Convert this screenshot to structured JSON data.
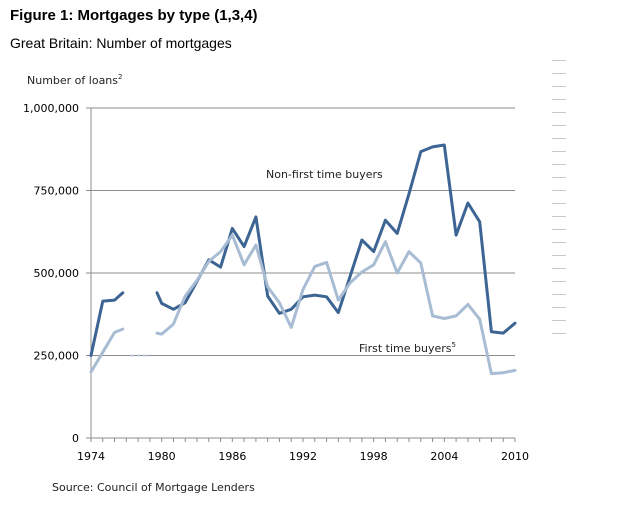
{
  "figure": {
    "title": "Figure 1: Mortgages by type (1,3,4)",
    "subtitle": "Great Britain: Number of mortgages",
    "source": "Source: Council of Mortgage Lenders"
  },
  "chart_data": {
    "type": "line",
    "ylabel": "Number of loans",
    "ylabel_sup": "2",
    "ylim": [
      0,
      1000000
    ],
    "xlim": [
      1974,
      2010
    ],
    "yticks": [
      0,
      250000,
      500000,
      750000,
      1000000
    ],
    "ytick_labels": [
      "0",
      "250,000",
      "500,000",
      "750,000",
      "1,000,000"
    ],
    "xtick_labels": [
      "1974",
      "1980",
      "1986",
      "1992",
      "1998",
      "2004",
      "2010"
    ],
    "xticks": [
      1974,
      1980,
      1986,
      1992,
      1998,
      2004,
      2010
    ],
    "grid": true,
    "series": [
      {
        "name": "Non-first time buyers",
        "color": "#3d6593",
        "segments": [
          [
            [
              1974,
              250000
            ],
            [
              1975,
              415000
            ],
            [
              1976,
              418000
            ],
            [
              1976.7,
              440000
            ]
          ],
          [
            [
              1979.6,
              440000
            ],
            [
              1980,
              408000
            ],
            [
              1981,
              390000
            ],
            [
              1982,
              410000
            ],
            [
              1983,
              475000
            ],
            [
              1984,
              540000
            ],
            [
              1985,
              518000
            ],
            [
              1986,
              635000
            ],
            [
              1987,
              580000
            ],
            [
              1988,
              670000
            ],
            [
              1989,
              430000
            ],
            [
              1990,
              378000
            ],
            [
              1991,
              390000
            ],
            [
              1992,
              428000
            ],
            [
              1993,
              433000
            ],
            [
              1994,
              428000
            ],
            [
              1995,
              380000
            ],
            [
              1996,
              490000
            ],
            [
              1997,
              600000
            ],
            [
              1998,
              565000
            ],
            [
              1999,
              660000
            ],
            [
              2000,
              620000
            ],
            [
              2001,
              740000
            ],
            [
              2002,
              868000
            ],
            [
              2003,
              882000
            ],
            [
              2004,
              888000
            ],
            [
              2005,
              615000
            ],
            [
              2006,
              712000
            ],
            [
              2007,
              655000
            ],
            [
              2008,
              322000
            ],
            [
              2009,
              318000
            ],
            [
              2010,
              348000
            ]
          ]
        ]
      },
      {
        "name": "First time buyers",
        "name_sup": "5",
        "color": "#a8bcd3",
        "segments": [
          [
            [
              1974,
              200000
            ],
            [
              1975,
              260000
            ],
            [
              1976,
              320000
            ],
            [
              1976.7,
              330000
            ]
          ],
          [
            [
              1979.6,
              318000
            ],
            [
              1980,
              315000
            ],
            [
              1981,
              345000
            ],
            [
              1982,
              430000
            ],
            [
              1983,
              478000
            ],
            [
              1984,
              535000
            ],
            [
              1985,
              565000
            ],
            [
              1986,
              615000
            ],
            [
              1987,
              525000
            ],
            [
              1988,
              585000
            ],
            [
              1989,
              458000
            ],
            [
              1990,
              410000
            ],
            [
              1991,
              335000
            ],
            [
              1992,
              450000
            ],
            [
              1993,
              520000
            ],
            [
              1994,
              532000
            ],
            [
              1995,
              418000
            ],
            [
              1996,
              470000
            ],
            [
              1997,
              503000
            ],
            [
              1998,
              525000
            ],
            [
              1999,
              595000
            ],
            [
              2000,
              500000
            ],
            [
              2001,
              565000
            ],
            [
              2002,
              530000
            ],
            [
              2003,
              370000
            ],
            [
              2004,
              362000
            ],
            [
              2005,
              370000
            ],
            [
              2006,
              405000
            ],
            [
              2007,
              360000
            ],
            [
              2008,
              195000
            ],
            [
              2009,
              198000
            ],
            [
              2010,
              205000
            ]
          ]
        ]
      }
    ],
    "gap_dash": {
      "color": "#a8bcd3",
      "points": [
        [
          1977.4,
          250000
        ],
        [
          1979,
          250000
        ]
      ]
    }
  },
  "side_rule_count": 22
}
